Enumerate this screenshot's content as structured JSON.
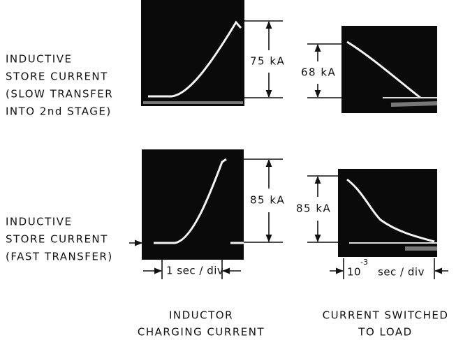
{
  "rows": [
    {
      "label_lines": [
        "INDUCTIVE",
        "STORE CURRENT",
        "(SLOW TRANSFER",
        "INTO 2nd STAGE)"
      ],
      "left_amplitude": "75 kA",
      "right_amplitude": "68 kA"
    },
    {
      "label_lines": [
        "INDUCTIVE",
        "STORE CURRENT",
        "(FAST TRANSFER)"
      ],
      "left_amplitude": "85 kA",
      "right_amplitude": "85 kA"
    }
  ],
  "timebase": {
    "left": "1 sec / div",
    "right_base": "10",
    "right_exponent": "-3",
    "right_unit": "sec / div"
  },
  "columns": [
    {
      "lines": [
        "INDUCTOR",
        "CHARGING CURRENT"
      ]
    },
    {
      "lines": [
        "CURRENT SWITCHED",
        "TO LOAD"
      ]
    }
  ]
}
